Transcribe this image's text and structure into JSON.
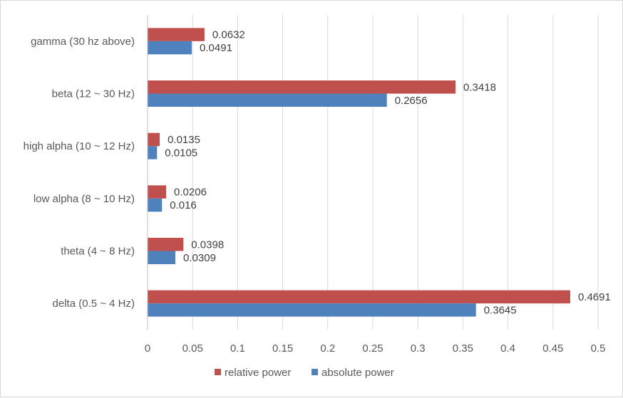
{
  "chart_data": {
    "type": "bar",
    "orientation": "horizontal",
    "categories": [
      "delta (0.5 ~ 4 Hz)",
      "theta (4 ~ 8 Hz)",
      "low alpha (8 ~ 10 Hz)",
      "high alpha (10 ~ 12 Hz)",
      "beta (12 ~ 30 Hz)",
      "gamma (30 hz above)"
    ],
    "series": [
      {
        "name": "relative power",
        "color": "#c0504d",
        "values": [
          0.4691,
          0.0398,
          0.0206,
          0.0135,
          0.3418,
          0.0632
        ]
      },
      {
        "name": "absolute power",
        "color": "#4f81bd",
        "values": [
          0.3645,
          0.0309,
          0.016,
          0.0105,
          0.2656,
          0.0491
        ]
      }
    ],
    "value_labels": {
      "relative power": [
        "0.4691",
        "0.0398",
        "0.0206",
        "0.0135",
        "0.3418",
        "0.0632"
      ],
      "absolute power": [
        "0.3645",
        "0.0309",
        "0.016",
        "0.0105",
        "0.2656",
        "0.0491"
      ]
    },
    "x_ticks": [
      "0",
      "0.05",
      "0.1",
      "0.15",
      "0.2",
      "0.25",
      "0.3",
      "0.35",
      "0.4",
      "0.45",
      "0.5"
    ],
    "xlim": [
      0,
      0.5
    ],
    "grid": "vertical",
    "legend_position": "bottom",
    "title": "",
    "xlabel": "",
    "ylabel": ""
  }
}
